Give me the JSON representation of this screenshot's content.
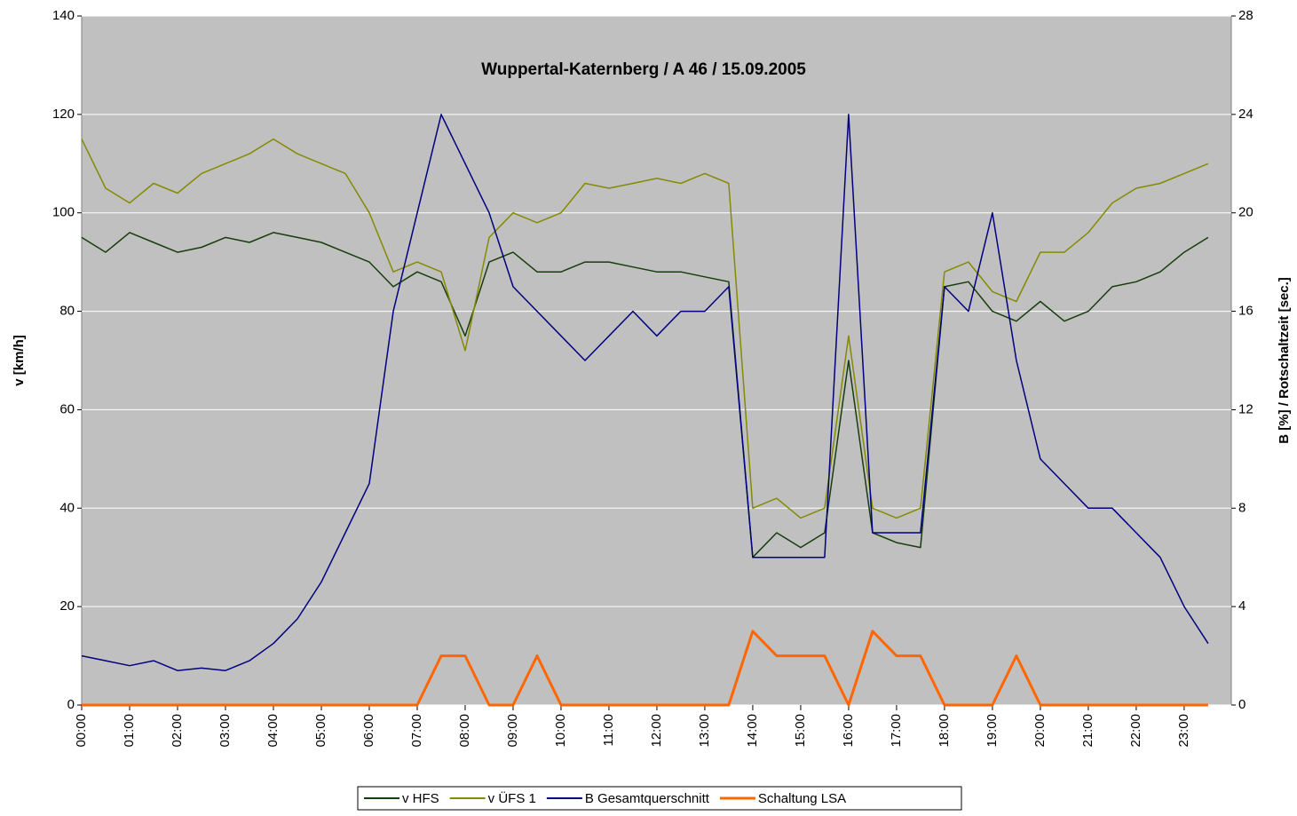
{
  "chart_data": {
    "type": "line",
    "title": "Wuppertal-Katernberg / A 46 / 15.09.2005",
    "y_label": "v [km/h]",
    "y2_label": "B [%] / Rotschaltzeit [sec.]",
    "x": [
      "00:00",
      "00:30",
      "01:00",
      "01:30",
      "02:00",
      "02:30",
      "03:00",
      "03:30",
      "04:00",
      "04:30",
      "05:00",
      "05:30",
      "06:00",
      "06:30",
      "07:00",
      "07:30",
      "08:00",
      "08:30",
      "09:00",
      "09:30",
      "10:00",
      "10:30",
      "11:00",
      "11:30",
      "12:00",
      "12:30",
      "13:00",
      "13:30",
      "14:00",
      "14:30",
      "15:00",
      "15:30",
      "16:00",
      "16:30",
      "17:00",
      "17:30",
      "18:00",
      "18:30",
      "19:00",
      "19:30",
      "20:00",
      "20:30",
      "21:00",
      "21:30",
      "22:00",
      "22:30",
      "23:00",
      "23:30"
    ],
    "xlim": [
      "00:00",
      "23:59"
    ],
    "xticks": [
      "00:00",
      "01:00",
      "02:00",
      "03:00",
      "04:00",
      "05:00",
      "06:00",
      "07:00",
      "08:00",
      "09:00",
      "10:00",
      "11:00",
      "12:00",
      "13:00",
      "14:00",
      "15:00",
      "16:00",
      "17:00",
      "18:00",
      "19:00",
      "20:00",
      "21:00",
      "22:00",
      "23:00"
    ],
    "ylim": [
      0,
      140
    ],
    "yticks": [
      0,
      20,
      40,
      60,
      80,
      100,
      120,
      140
    ],
    "y2lim": [
      0,
      28
    ],
    "y2ticks": [
      0,
      4,
      8,
      12,
      16,
      20,
      24,
      28
    ],
    "grid": true,
    "legend": "bottom",
    "series": [
      {
        "name": "v HFS",
        "color": "#173d0c",
        "values": [
          95,
          92,
          96,
          94,
          92,
          93,
          95,
          94,
          96,
          95,
          94,
          92,
          90,
          85,
          88,
          86,
          75,
          90,
          92,
          88,
          88,
          90,
          90,
          89,
          88,
          88,
          87,
          86,
          30,
          35,
          32,
          35,
          70,
          35,
          33,
          32,
          85,
          86,
          80,
          78,
          82,
          78,
          80,
          85,
          86,
          88,
          92,
          95
        ]
      },
      {
        "name": "v ÜFS 1",
        "color": "#858a00",
        "values": [
          115,
          105,
          102,
          106,
          104,
          108,
          110,
          112,
          115,
          112,
          110,
          108,
          100,
          88,
          90,
          88,
          72,
          95,
          100,
          98,
          100,
          106,
          105,
          106,
          107,
          106,
          108,
          106,
          40,
          42,
          38,
          40,
          75,
          40,
          38,
          40,
          88,
          90,
          84,
          82,
          92,
          92,
          96,
          102,
          105,
          106,
          108,
          110
        ]
      },
      {
        "name": "B Gesamtquerschnitt",
        "color": "#000080",
        "axis": "y2",
        "values": [
          2,
          1.8,
          1.6,
          1.8,
          1.4,
          1.5,
          1.4,
          1.8,
          2.5,
          3.5,
          5,
          7,
          9,
          16,
          20,
          24,
          22,
          20,
          17,
          16,
          15,
          14,
          15,
          16,
          15,
          16,
          16,
          17,
          6,
          6,
          6,
          6,
          24,
          7,
          7,
          7,
          17,
          16,
          20,
          14,
          10,
          9,
          8,
          8,
          7,
          6,
          4,
          2.5
        ]
      },
      {
        "name": "Schaltung LSA",
        "color": "#ff6600",
        "axis": "y2",
        "values": [
          0,
          0,
          0,
          0,
          0,
          0,
          0,
          0,
          0,
          0,
          0,
          0,
          0,
          0,
          0,
          2,
          2,
          0,
          0,
          2,
          0,
          0,
          0,
          0,
          0,
          0,
          0,
          0,
          3,
          2,
          2,
          2,
          0,
          3,
          2,
          2,
          0,
          0,
          0,
          2,
          0,
          0,
          0,
          0,
          0,
          0,
          0,
          0
        ]
      }
    ]
  }
}
